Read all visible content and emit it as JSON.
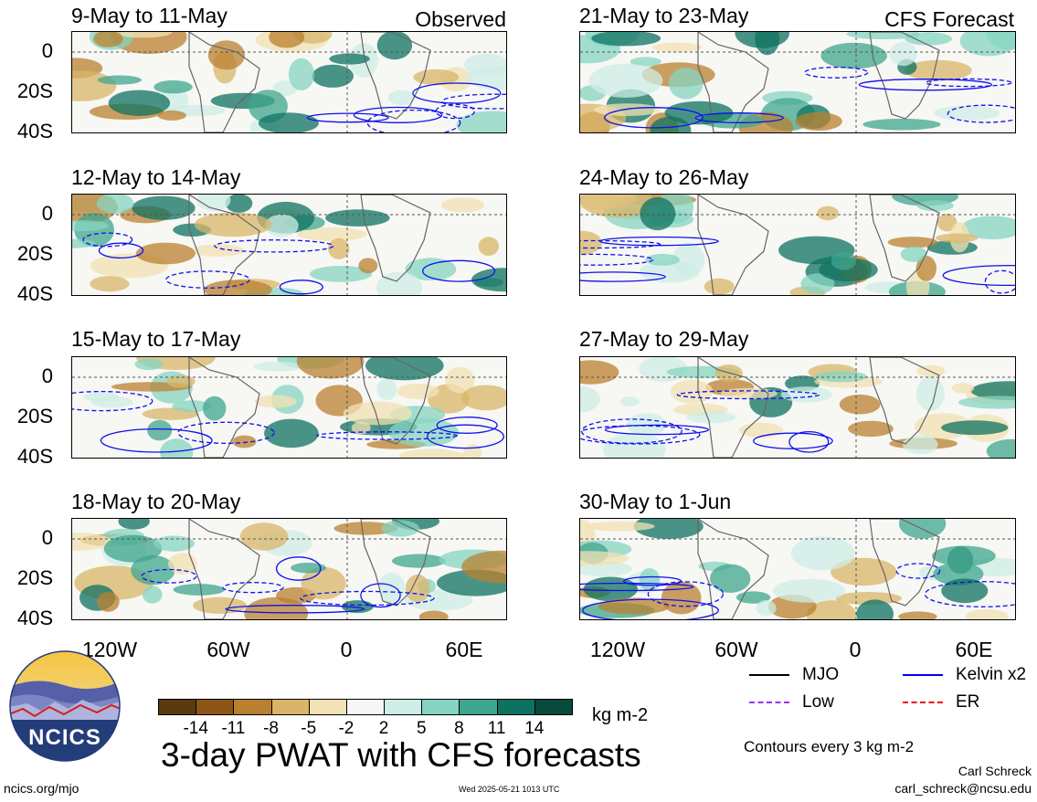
{
  "panels": [
    {
      "title": "9-May to 11-May",
      "tag": "Observed"
    },
    {
      "title": "12-May to 14-May",
      "tag": ""
    },
    {
      "title": "15-May to 17-May",
      "tag": ""
    },
    {
      "title": "18-May to 20-May",
      "tag": ""
    },
    {
      "title": "21-May to 23-May",
      "tag": "CFS Forecast"
    },
    {
      "title": "24-May to 26-May",
      "tag": ""
    },
    {
      "title": "27-May to 29-May",
      "tag": ""
    },
    {
      "title": "30-May to 1-Jun",
      "tag": ""
    }
  ],
  "y_ticks": [
    "0",
    "20S",
    "40S"
  ],
  "x_ticks": [
    "120W",
    "60W",
    "0",
    "60E"
  ],
  "colorbar": {
    "colors": [
      "#5a3b10",
      "#8c5515",
      "#b9802f",
      "#d9b56a",
      "#f2e1b3",
      "#f6f6f6",
      "#cdeee6",
      "#86d4c2",
      "#3fa68e",
      "#0d7260",
      "#084a3c"
    ],
    "labels": [
      "-14",
      "-11",
      "-8",
      "-5",
      "-2",
      "2",
      "5",
      "8",
      "11",
      "14"
    ],
    "units": "kg m-2"
  },
  "legend": {
    "items": [
      {
        "label": "MJO",
        "color": "#000000",
        "style": "solid"
      },
      {
        "label": "Kelvin x2",
        "color": "#0000ee",
        "style": "solid"
      },
      {
        "label": "Low",
        "color": "#9933ee",
        "style": "dashed"
      },
      {
        "label": "ER",
        "color": "#ee0000",
        "style": "dashed"
      }
    ],
    "contour_note": "Contours every 3 kg m-2"
  },
  "main_title": "3-day PWAT with CFS forecasts",
  "logo_text": "NCICS",
  "footer": {
    "left": "ncics.org/mjo",
    "center": "Wed 2025-05-21 1013 UTC",
    "author": "Carl Schreck",
    "email": "carl_schreck@ncsu.edu"
  }
}
